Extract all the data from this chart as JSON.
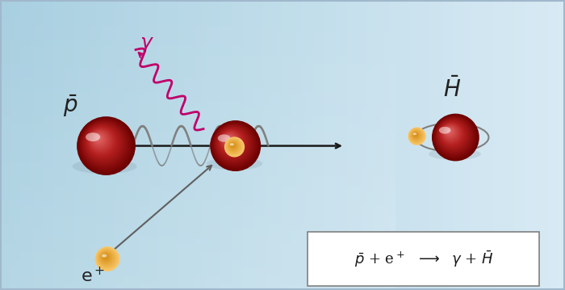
{
  "bg_color_left": "#a8cfe0",
  "bg_color_right": "#d8eaf4",
  "antiproton_color_dark": "#8b0000",
  "antiproton_color_mid": "#c0392b",
  "antiproton_color_light": "#e8a0a0",
  "positron_color": "#f5a623",
  "positron_color_light": "#f9c96c",
  "photon_color": "#c0006a",
  "arrow_color": "#1a1a1a",
  "spiral_color": "#808080",
  "orbit_color": "#808080",
  "box_color": "#e8f0f8",
  "label_antiproton": "$\\bar{p}$",
  "label_positron": "e$^+$",
  "label_photon": "$\\gamma$",
  "label_antihydrogen": "$\\bar{H}$",
  "equation": "$\\bar{p}$ + e$^+$  $\\longrightarrow$  $\\gamma$ + $\\bar{H}$",
  "figsize": [
    7.0,
    3.59
  ],
  "dpi": 100
}
